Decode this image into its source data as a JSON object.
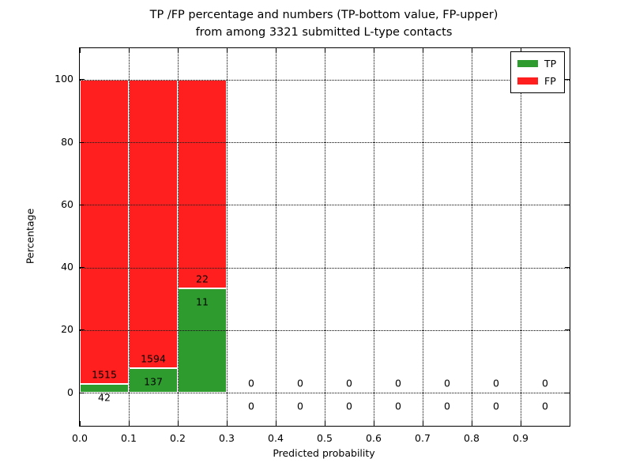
{
  "figure": {
    "title_line1": "TP /FP percentage and numbers (TP-bottom value, FP-upper)",
    "title_line2": "from among 3321 submitted L-type contacts"
  },
  "chart_data": {
    "type": "bar",
    "stacked": true,
    "title": "TP /FP percentage and numbers (TP-bottom value, FP-upper) from among 3321 submitted L-type contacts",
    "xlabel": "Predicted probability",
    "ylabel": "Percentage",
    "total_submitted": 3321,
    "xlim": [
      0.0,
      1.0
    ],
    "ylim": [
      -10.6,
      110.1
    ],
    "xticks": [
      "0.0",
      "0.1",
      "0.2",
      "0.3",
      "0.4",
      "0.5",
      "0.6",
      "0.7",
      "0.8",
      "0.9"
    ],
    "yticks": [
      0,
      20,
      40,
      60,
      80,
      100
    ],
    "grid": "dotted black, drawn above bars",
    "legend_position": "upper right",
    "bin_edges": [
      0.0,
      0.1,
      0.2,
      0.3,
      0.4,
      0.5,
      0.6,
      0.7,
      0.8,
      0.9,
      1.0
    ],
    "series": [
      {
        "name": "TP",
        "color": "#2e9b2e",
        "counts": [
          42,
          137,
          11,
          0,
          0,
          0,
          0,
          0,
          0,
          0
        ],
        "percent": [
          2.7,
          7.92,
          33.33,
          0,
          0,
          0,
          0,
          0,
          0,
          0
        ]
      },
      {
        "name": "FP",
        "color": "#ff1f1f",
        "counts": [
          1515,
          1594,
          22,
          0,
          0,
          0,
          0,
          0,
          0,
          0
        ],
        "percent": [
          97.3,
          92.08,
          66.67,
          0,
          0,
          0,
          0,
          0,
          0,
          0
        ]
      }
    ]
  },
  "legend": {
    "entries": [
      {
        "label": "TP",
        "color": "#2e9b2e"
      },
      {
        "label": "FP",
        "color": "#ff1f1f"
      }
    ]
  }
}
